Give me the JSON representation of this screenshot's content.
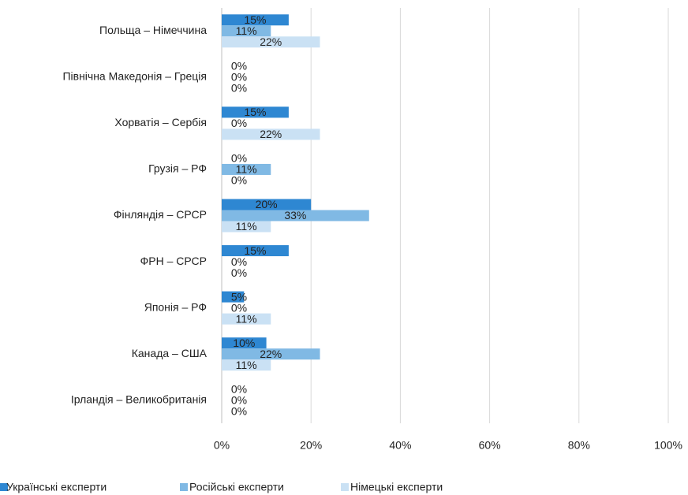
{
  "chart_data": {
    "type": "hbar",
    "categories": [
      "Польща – Німеччина",
      "Північна Македонія – Греція",
      "Хорватія – Сербія",
      "Грузія – РФ",
      "Фінляндія – СРСР",
      "ФРН – СРСР",
      "Японія – РФ",
      "Канада – США",
      "Ірландія – Великобританія"
    ],
    "series": [
      {
        "name": "Українські експерти",
        "color": "#2e87d2",
        "values": [
          15,
          0,
          15,
          0,
          20,
          15,
          5,
          10,
          0
        ],
        "value_labels": [
          "15%",
          "0%",
          "15%",
          "0%",
          "20%",
          "15%",
          "5%",
          "10%",
          "0%"
        ]
      },
      {
        "name": "Російські експерти",
        "color": "#80b9e4",
        "values": [
          11,
          0,
          0,
          11,
          33,
          0,
          0,
          22,
          0
        ],
        "value_labels": [
          "11%",
          "0%",
          "0%",
          "11%",
          "33%",
          "0%",
          "0%",
          "22%",
          "0%"
        ]
      },
      {
        "name": "Німецькі експерти",
        "color": "#cae1f4",
        "values": [
          22,
          0,
          22,
          0,
          11,
          0,
          11,
          11,
          0
        ],
        "value_labels": [
          "22%",
          "0%",
          "22%",
          "0%",
          "11%",
          "0%",
          "11%",
          "11%",
          "0%"
        ]
      }
    ],
    "xlim": [
      0,
      100
    ],
    "xticks": [
      {
        "value": 0,
        "label": "0%"
      },
      {
        "value": 20,
        "label": "20%"
      },
      {
        "value": 40,
        "label": "40%"
      },
      {
        "value": 60,
        "label": "60%"
      },
      {
        "value": 80,
        "label": "80%"
      },
      {
        "value": 100,
        "label": "100%"
      }
    ],
    "grid": true,
    "legend": "bottom"
  }
}
